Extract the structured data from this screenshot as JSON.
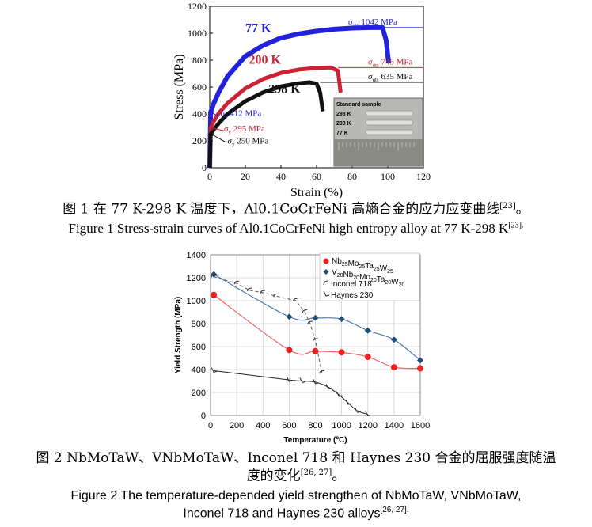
{
  "figure1": {
    "caption_cn": "图 1  在 77 K-298 K 温度下，Al0.1CoCrFeNi 高熵合金的应力应变曲线",
    "caption_cn_ref": "[23]",
    "caption_cn_end": "。",
    "caption_en": "Figure 1 Stress-strain curves of Al0.1CoCrFeNi high entropy alloy at 77 K-298 K",
    "caption_en_ref": "[23].",
    "inset": {
      "title": "Standard sample",
      "labels": [
        "298 K",
        "200 K",
        "77 K"
      ]
    },
    "annotations": {
      "uts_77": "1042 MPa",
      "uts_200": "745 MPa",
      "uts_298": "635 MPa",
      "ys_77": "412 MPa",
      "ys_200": "295 MPa",
      "ys_298": "250 MPa",
      "sigma": "σ",
      "uts_sub": "uts",
      "y_sub": "y"
    }
  },
  "chart_data": [
    {
      "type": "line",
      "xlabel": "Strain (%)",
      "ylabel": "Stress (MPa)",
      "xlim": [
        0,
        120
      ],
      "ylim": [
        0,
        1200
      ],
      "xticks": [
        0,
        20,
        40,
        60,
        80,
        100,
        120
      ],
      "yticks": [
        0,
        200,
        400,
        600,
        800,
        1000,
        1200
      ],
      "grid": false,
      "series": [
        {
          "name": "77 K",
          "color": "#2222dd",
          "x": [
            0,
            0.5,
            2,
            5,
            10,
            20,
            30,
            40,
            50,
            60,
            70,
            80,
            90,
            97,
            99,
            100.5
          ],
          "y": [
            0,
            412,
            470,
            560,
            680,
            830,
            910,
            965,
            995,
            1015,
            1030,
            1038,
            1042,
            1042,
            950,
            780
          ]
        },
        {
          "name": "200 K",
          "color": "#cc2233",
          "x": [
            0,
            0.5,
            2,
            5,
            10,
            20,
            30,
            40,
            50,
            60,
            68,
            72,
            73.5
          ],
          "y": [
            0,
            295,
            340,
            405,
            480,
            590,
            660,
            705,
            730,
            742,
            745,
            720,
            560
          ]
        },
        {
          "name": "298 K",
          "color": "#111111",
          "x": [
            0,
            0.5,
            2,
            5,
            10,
            20,
            30,
            40,
            50,
            56,
            60,
            62,
            63.5
          ],
          "y": [
            0,
            250,
            280,
            330,
            400,
            495,
            560,
            605,
            628,
            635,
            625,
            560,
            420
          ]
        }
      ],
      "series_labels": [
        "77 K",
        "200 K",
        "298 K"
      ]
    },
    {
      "type": "scatter",
      "xlabel": "Temperature (ºC)",
      "ylabel": "Yield Strength (MPa)",
      "xlim": [
        0,
        1600
      ],
      "ylim": [
        0,
        1400
      ],
      "xticks": [
        0,
        200,
        400,
        600,
        800,
        1000,
        1200,
        1400,
        1600
      ],
      "yticks": [
        0,
        200,
        400,
        600,
        800,
        1000,
        1200,
        1400
      ],
      "grid": true,
      "legend": "top-right",
      "series": [
        {
          "name": "Nb25Mo25Ta25W25",
          "color": "#ee2222",
          "marker": "circle",
          "x": [
            25,
            600,
            800,
            1000,
            1200,
            1400,
            1600
          ],
          "y": [
            1050,
            570,
            560,
            550,
            510,
            420,
            410
          ]
        },
        {
          "name": "V20Nb20Mo20Ta20W20",
          "color": "#1f4e79",
          "marker": "diamond",
          "x": [
            25,
            600,
            800,
            1000,
            1200,
            1400,
            1600
          ],
          "y": [
            1230,
            860,
            850,
            840,
            740,
            660,
            480
          ]
        },
        {
          "name": "Inconel 718",
          "color": "#555555",
          "marker": "hook",
          "x": [
            25,
            200,
            300,
            400,
            500,
            650,
            720,
            760,
            800,
            850
          ],
          "y": [
            1210,
            1150,
            1090,
            1070,
            1040,
            1000,
            900,
            800,
            650,
            370
          ]
        },
        {
          "name": "Haynes 230",
          "color": "#222222",
          "marker": "hook",
          "x": [
            25,
            600,
            700,
            800,
            900,
            980,
            1050,
            1120,
            1200
          ],
          "y": [
            390,
            310,
            300,
            290,
            245,
            180,
            110,
            40,
            10
          ]
        }
      ],
      "legend_entries": [
        {
          "pre": "Nb",
          "parts": [
            [
              "Nb",
              "25"
            ],
            [
              "Mo",
              "25"
            ],
            [
              "Ta",
              "25"
            ],
            [
              "W",
              "25"
            ]
          ]
        },
        {
          "parts": [
            [
              "V",
              "20"
            ],
            [
              "Nb",
              "20"
            ],
            [
              "Mo",
              "20"
            ],
            [
              "Ta",
              "20"
            ],
            [
              "W",
              "20"
            ]
          ]
        },
        {
          "text": "Inconel 718"
        },
        {
          "text": "Haynes 230"
        }
      ]
    }
  ],
  "figure2": {
    "caption_cn_line1": "图 2 NbMoTaW、VNbMoTaW、Inconel 718 和 Haynes 230 合金的屈服强度随温",
    "caption_cn_line2": "度的变化",
    "caption_cn_ref": "[26, 27]",
    "caption_cn_end": "。",
    "caption_en_line1": "Figure 2 The temperature-depended yield strengthen of NbMoTaW, VNbMoTaW,",
    "caption_en_line2": "Inconel 718 and Haynes 230 alloys",
    "caption_en_ref": "[26, 27]."
  }
}
